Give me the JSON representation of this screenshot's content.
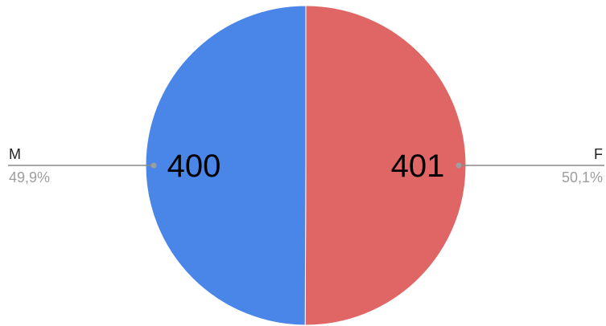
{
  "chart_data": {
    "type": "pie",
    "slices": [
      {
        "label": "M",
        "value": 400,
        "value_label": "400",
        "percent_label": "49,9%",
        "color": "#4a86e8"
      },
      {
        "label": "F",
        "value": 401,
        "value_label": "401",
        "percent_label": "50,1%",
        "color": "#e06666"
      }
    ],
    "title": "",
    "legend": "leader-lines-left-right"
  }
}
